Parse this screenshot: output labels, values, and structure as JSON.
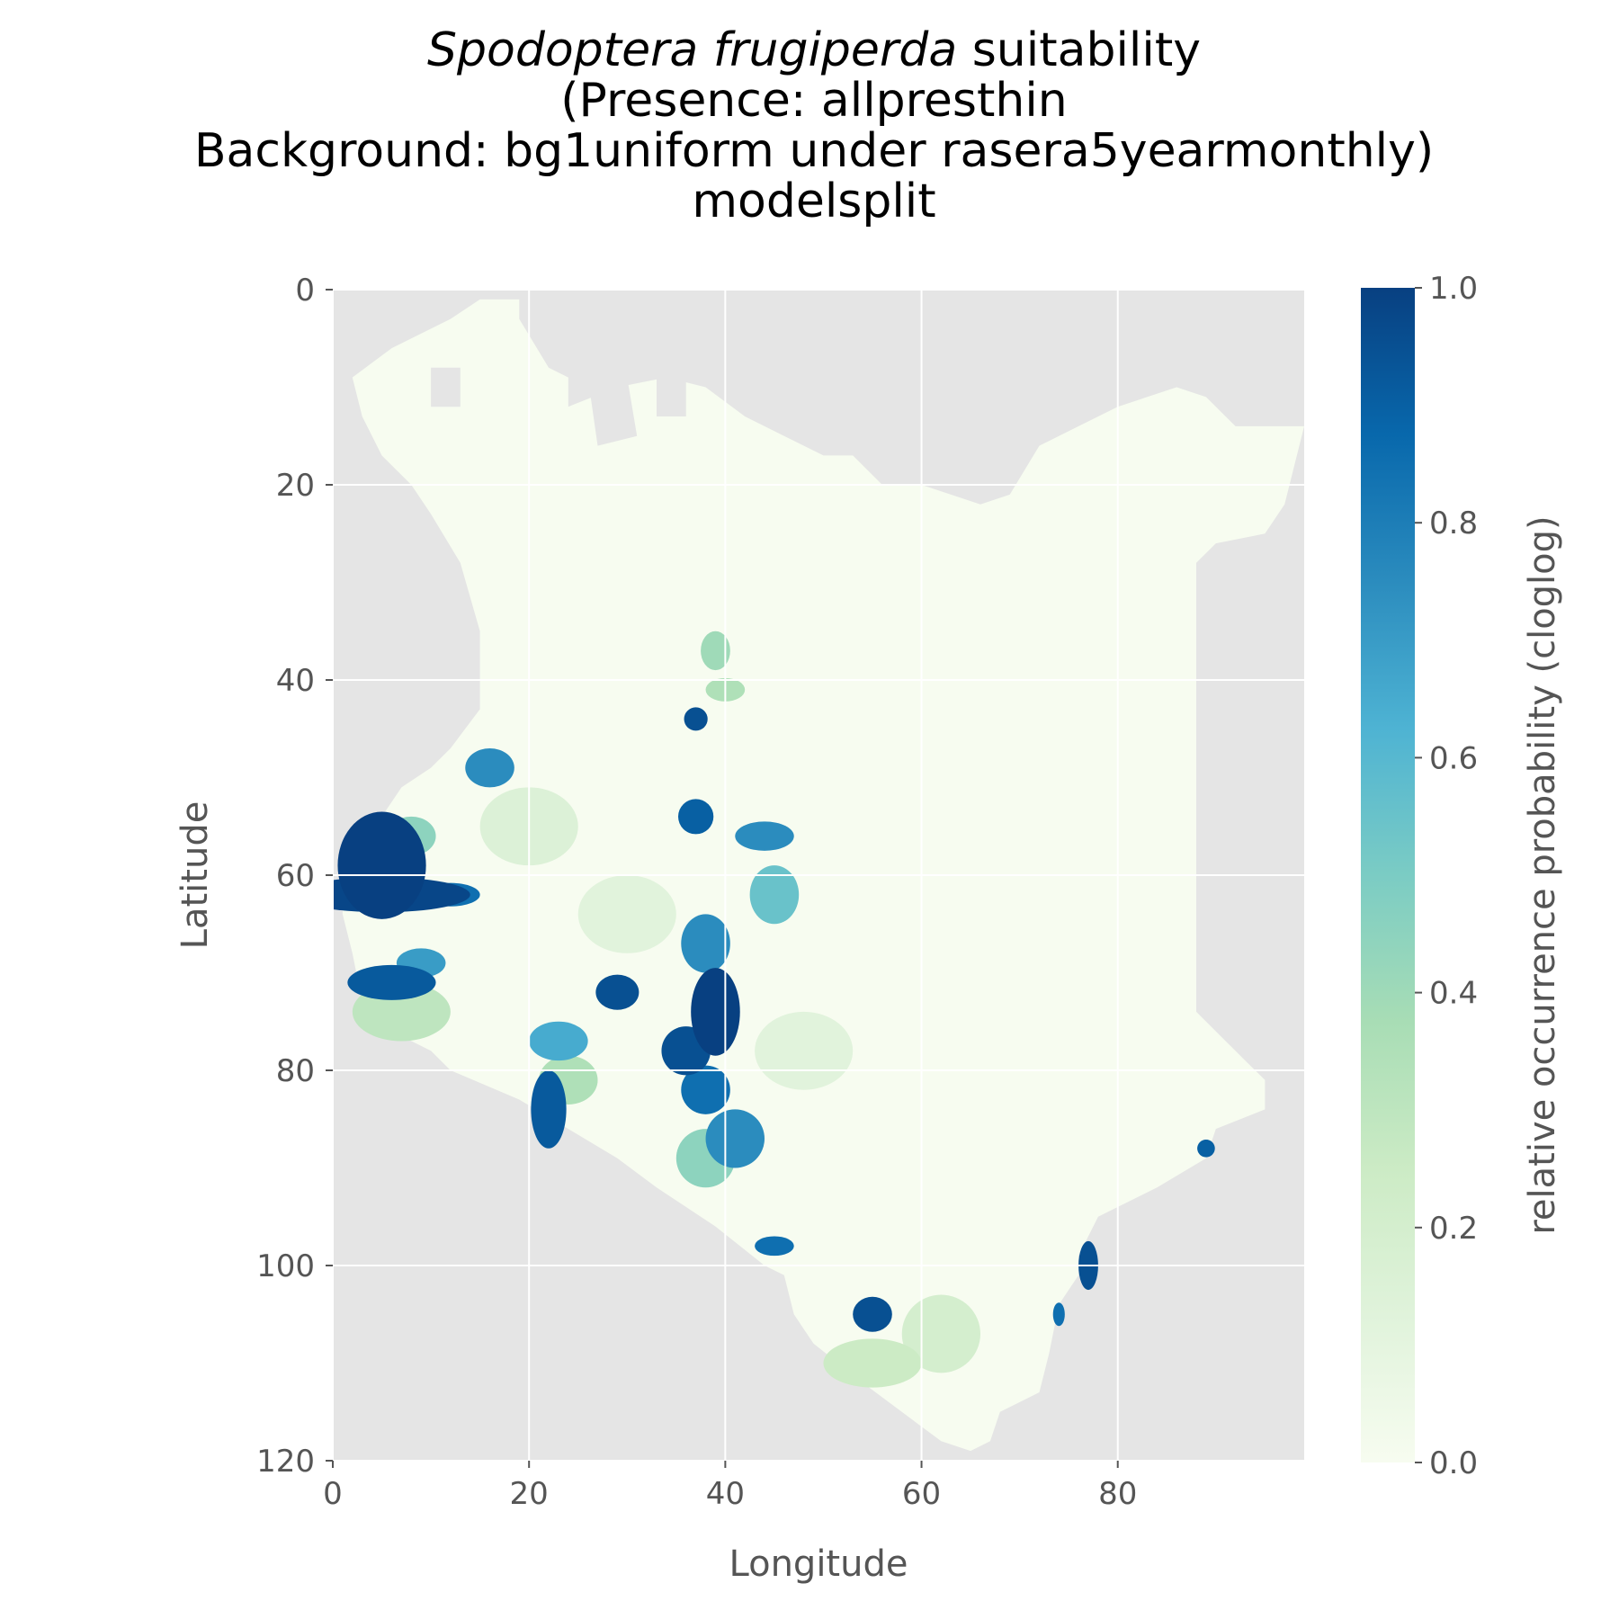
{
  "chart_data": {
    "type": "heatmap",
    "title": {
      "species": "Spodoptera frugiperda",
      "line1_rest": "suitability",
      "line2": "(Presence: allpresthin",
      "line3": "Background: bg1uniform under rasera5yearmonthly)",
      "line4": "modelsplit"
    },
    "xlabel": "Longitude",
    "ylabel": "Latitude",
    "x_range": [
      0,
      99
    ],
    "y_range": [
      0,
      120
    ],
    "y_inverted": true,
    "x_ticks": [
      "0",
      "20",
      "40",
      "60",
      "80"
    ],
    "y_ticks": [
      "0",
      "20",
      "40",
      "60",
      "80",
      "100",
      "120"
    ],
    "grid": true,
    "background_color": "#e5e5e5",
    "colormap": "GnBu",
    "colorbar": {
      "label": "relative occurrence probability (cloglog)",
      "ticks": [
        "0.0",
        "0.2",
        "0.4",
        "0.6",
        "0.8",
        "1.0"
      ],
      "range": [
        0,
        1
      ],
      "colors": [
        "#f7fcf0",
        "#e0f3db",
        "#ccebc5",
        "#a8ddb5",
        "#7bccc4",
        "#4eb3d3",
        "#2b8cbe",
        "#0868ac",
        "#084081"
      ]
    },
    "region_outline": [
      [
        15,
        1
      ],
      [
        19,
        1
      ],
      [
        19,
        3
      ],
      [
        22,
        8
      ],
      [
        24,
        9
      ],
      [
        24,
        12
      ],
      [
        29,
        10
      ],
      [
        34,
        9
      ],
      [
        38,
        10
      ],
      [
        42,
        13
      ],
      [
        46,
        15
      ],
      [
        50,
        17
      ],
      [
        53,
        17
      ],
      [
        56,
        20
      ],
      [
        60,
        20
      ],
      [
        66,
        22
      ],
      [
        69,
        21
      ],
      [
        72,
        16
      ],
      [
        76,
        14
      ],
      [
        80,
        12
      ],
      [
        86,
        10
      ],
      [
        89,
        11
      ],
      [
        92,
        14
      ],
      [
        99,
        14
      ],
      [
        97,
        22
      ],
      [
        95,
        25
      ],
      [
        90,
        26
      ],
      [
        88,
        28
      ],
      [
        88,
        40
      ],
      [
        88,
        60
      ],
      [
        88,
        74
      ],
      [
        90,
        76
      ],
      [
        93,
        79
      ],
      [
        95,
        81
      ],
      [
        95,
        84
      ],
      [
        90,
        86
      ],
      [
        89,
        89
      ],
      [
        84,
        92
      ],
      [
        78,
        95
      ],
      [
        76,
        99
      ],
      [
        76,
        101
      ],
      [
        74,
        104
      ],
      [
        73,
        109
      ],
      [
        72,
        113
      ],
      [
        68,
        115
      ],
      [
        67,
        118
      ],
      [
        65,
        119
      ],
      [
        62,
        118
      ],
      [
        58,
        115
      ],
      [
        54,
        112
      ],
      [
        49,
        108
      ],
      [
        47,
        105
      ],
      [
        46,
        101
      ],
      [
        44,
        100
      ],
      [
        39,
        96
      ],
      [
        36,
        94
      ],
      [
        33,
        92
      ],
      [
        29,
        89
      ],
      [
        24,
        86
      ],
      [
        19,
        83
      ],
      [
        12,
        80
      ],
      [
        10,
        78
      ],
      [
        6,
        76
      ],
      [
        3,
        73
      ],
      [
        2,
        68
      ],
      [
        1,
        64
      ],
      [
        1,
        61
      ],
      [
        3,
        57
      ],
      [
        5,
        54
      ],
      [
        7,
        51
      ],
      [
        10,
        49
      ],
      [
        12,
        47
      ],
      [
        15,
        43
      ],
      [
        15,
        35
      ],
      [
        13,
        28
      ],
      [
        10,
        23
      ],
      [
        8,
        20
      ],
      [
        5,
        17
      ],
      [
        3,
        13
      ],
      [
        2,
        9
      ],
      [
        6,
        6
      ],
      [
        12,
        3
      ]
    ],
    "holes": [
      [
        [
          10,
          8
        ],
        [
          13,
          8
        ],
        [
          13,
          12
        ],
        [
          10,
          12
        ]
      ],
      [
        [
          26,
          9
        ],
        [
          30,
          9
        ],
        [
          31,
          15
        ],
        [
          27,
          16
        ]
      ],
      [
        [
          33,
          8
        ],
        [
          36,
          8
        ],
        [
          36,
          13
        ],
        [
          33,
          13
        ]
      ]
    ],
    "hotspots": [
      {
        "lon": 5,
        "lat": 59,
        "rx": 4.5,
        "ry": 5.5,
        "value": 1.0
      },
      {
        "lon": 5,
        "lat": 62,
        "rx": 9,
        "ry": 1.8,
        "value": 0.98
      },
      {
        "lon": 12,
        "lat": 62,
        "rx": 3,
        "ry": 1.2,
        "value": 0.85
      },
      {
        "lon": 6,
        "lat": 71,
        "rx": 4.5,
        "ry": 1.8,
        "value": 0.92
      },
      {
        "lon": 9,
        "lat": 69,
        "rx": 2.5,
        "ry": 1.5,
        "value": 0.7
      },
      {
        "lon": 7,
        "lat": 74,
        "rx": 5,
        "ry": 3,
        "value": 0.3
      },
      {
        "lon": 16,
        "lat": 49,
        "rx": 2.5,
        "ry": 2,
        "value": 0.75
      },
      {
        "lon": 8,
        "lat": 56,
        "rx": 2.5,
        "ry": 2,
        "value": 0.45
      },
      {
        "lon": 29,
        "lat": 72,
        "rx": 2.2,
        "ry": 1.8,
        "value": 0.95
      },
      {
        "lon": 23,
        "lat": 77,
        "rx": 3,
        "ry": 2,
        "value": 0.65
      },
      {
        "lon": 22,
        "lat": 84,
        "rx": 1.8,
        "ry": 4,
        "value": 0.92
      },
      {
        "lon": 24,
        "lat": 81,
        "rx": 3,
        "ry": 2.5,
        "value": 0.35
      },
      {
        "lon": 39,
        "lat": 74,
        "rx": 2.5,
        "ry": 4.5,
        "value": 1.0
      },
      {
        "lon": 36,
        "lat": 78,
        "rx": 2.5,
        "ry": 2.5,
        "value": 0.95
      },
      {
        "lon": 38,
        "lat": 67,
        "rx": 2.5,
        "ry": 3,
        "value": 0.75
      },
      {
        "lon": 38,
        "lat": 82,
        "rx": 2.5,
        "ry": 2.5,
        "value": 0.85
      },
      {
        "lon": 41,
        "lat": 87,
        "rx": 3,
        "ry": 3,
        "value": 0.75
      },
      {
        "lon": 38,
        "lat": 89,
        "rx": 3,
        "ry": 3,
        "value": 0.45
      },
      {
        "lon": 37,
        "lat": 54,
        "rx": 1.8,
        "ry": 1.8,
        "value": 0.9
      },
      {
        "lon": 44,
        "lat": 56,
        "rx": 3,
        "ry": 1.5,
        "value": 0.75
      },
      {
        "lon": 45,
        "lat": 62,
        "rx": 2.5,
        "ry": 3,
        "value": 0.55
      },
      {
        "lon": 37,
        "lat": 44,
        "rx": 1.2,
        "ry": 1.2,
        "value": 0.95
      },
      {
        "lon": 39,
        "lat": 37,
        "rx": 1.5,
        "ry": 2,
        "value": 0.4
      },
      {
        "lon": 40,
        "lat": 41,
        "rx": 2,
        "ry": 1.2,
        "value": 0.35
      },
      {
        "lon": 45,
        "lat": 98,
        "rx": 2,
        "ry": 1,
        "value": 0.85
      },
      {
        "lon": 55,
        "lat": 105,
        "rx": 2,
        "ry": 1.8,
        "value": 0.95
      },
      {
        "lon": 55,
        "lat": 110,
        "rx": 5,
        "ry": 2.5,
        "value": 0.25
      },
      {
        "lon": 77,
        "lat": 100,
        "rx": 1,
        "ry": 2.5,
        "value": 0.95
      },
      {
        "lon": 74,
        "lat": 105,
        "rx": 0.6,
        "ry": 1.2,
        "value": 0.85
      },
      {
        "lon": 89,
        "lat": 88,
        "rx": 0.9,
        "ry": 0.9,
        "value": 0.9
      },
      {
        "lon": 62,
        "lat": 107,
        "rx": 4,
        "ry": 4,
        "value": 0.2
      },
      {
        "lon": 20,
        "lat": 55,
        "rx": 5,
        "ry": 4,
        "value": 0.15
      },
      {
        "lon": 30,
        "lat": 64,
        "rx": 5,
        "ry": 4,
        "value": 0.12
      },
      {
        "lon": 48,
        "lat": 78,
        "rx": 5,
        "ry": 4,
        "value": 0.12
      }
    ]
  }
}
